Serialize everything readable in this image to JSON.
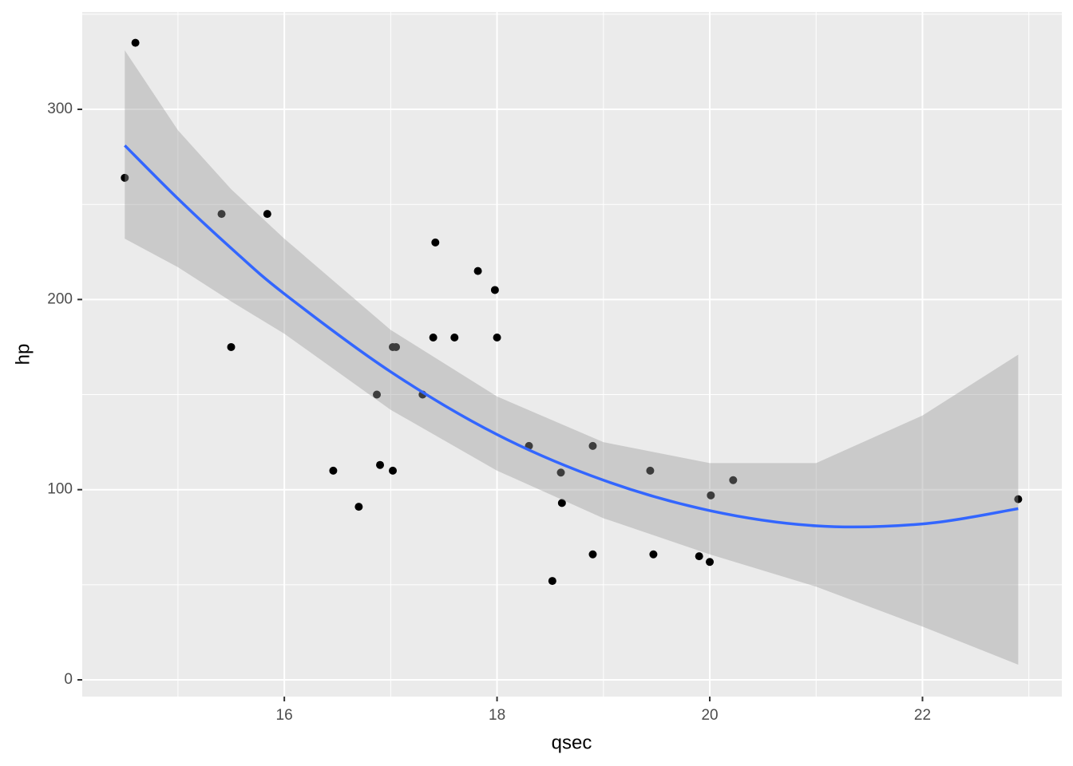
{
  "chart_data": {
    "type": "scatter",
    "x_label": "qsec",
    "y_label": "hp",
    "x": [
      16.46,
      17.02,
      18.61,
      19.44,
      17.02,
      20.22,
      15.84,
      20.0,
      22.9,
      18.3,
      18.9,
      17.4,
      17.6,
      18.0,
      17.98,
      17.82,
      17.42,
      19.47,
      18.52,
      19.9,
      20.01,
      16.87,
      17.3,
      15.41,
      17.05,
      18.9,
      16.7,
      16.9,
      14.5,
      15.5,
      14.6,
      18.6
    ],
    "values": [
      110,
      110,
      93,
      110,
      175,
      105,
      245,
      62,
      95,
      123,
      123,
      180,
      180,
      180,
      205,
      215,
      230,
      66,
      52,
      65,
      97,
      150,
      150,
      245,
      175,
      66,
      91,
      113,
      264,
      175,
      335,
      109
    ],
    "color": "#000000",
    "smooth": {
      "color": "#3366ff",
      "band_color": "#999999",
      "x": [
        14.5,
        15,
        15.5,
        16,
        17,
        18,
        19,
        20,
        21,
        22,
        22.9
      ],
      "values": [
        281,
        253,
        227,
        203,
        162,
        129,
        105,
        89,
        81,
        82,
        90
      ],
      "lower": [
        232,
        217,
        199,
        182,
        142,
        110,
        85,
        66,
        49,
        28,
        8
      ],
      "upper": [
        331,
        289,
        258,
        232,
        184,
        149,
        125,
        114,
        114,
        139,
        171
      ]
    },
    "xlim": [
      14.1,
      23.31
    ],
    "ylim": [
      -8.8,
      351.2
    ],
    "xticks": [
      16,
      18,
      20,
      22
    ],
    "yticks": [
      0,
      100,
      200,
      300
    ],
    "grid": true
  }
}
